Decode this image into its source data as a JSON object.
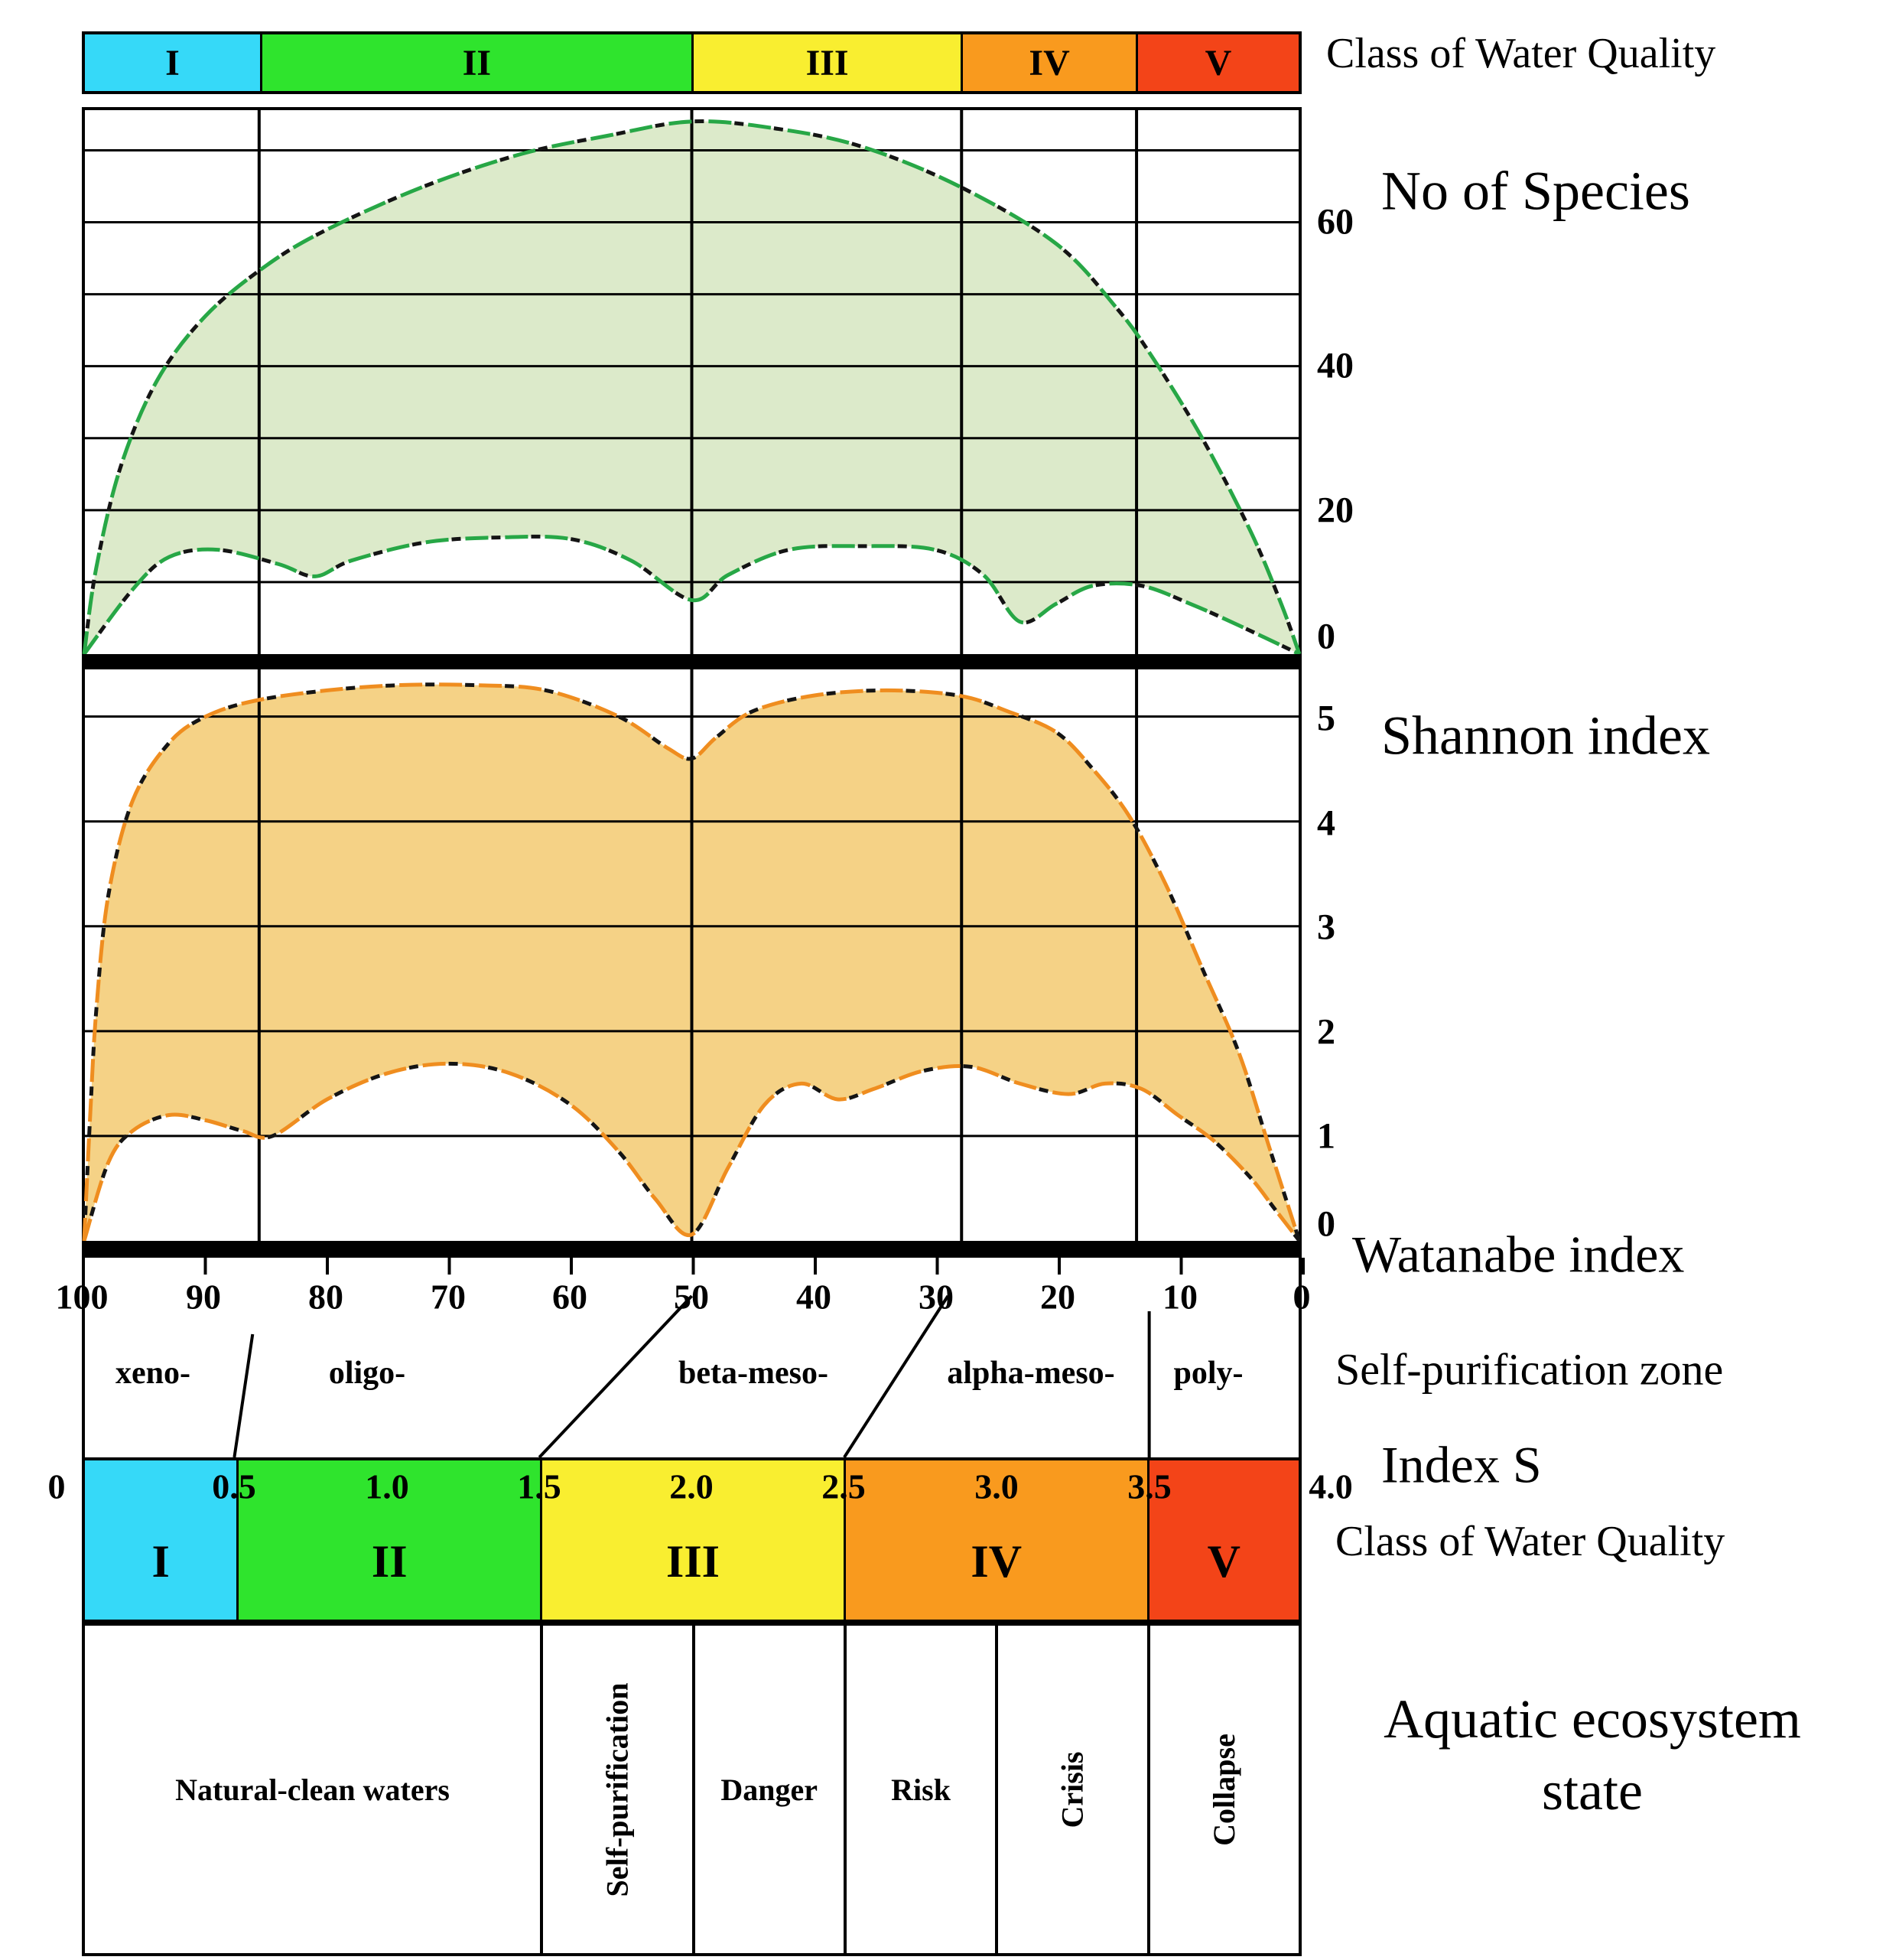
{
  "top_class_bar": {
    "title": "Class of Water Quality",
    "segments": [
      {
        "numeral": "I",
        "color": "#36d9f8"
      },
      {
        "numeral": "II",
        "color": "#2fe42d"
      },
      {
        "numeral": "III",
        "color": "#f9ee30"
      },
      {
        "numeral": "IV",
        "color": "#f99a1e"
      },
      {
        "numeral": "V",
        "color": "#f34418"
      }
    ]
  },
  "species_panel": {
    "title": "No of Species",
    "ticks": [
      "60",
      "40",
      "20",
      "0"
    ]
  },
  "shannon_panel": {
    "title": "Shannon index",
    "ticks": [
      "5",
      "4",
      "3",
      "2",
      "1",
      "0"
    ]
  },
  "watanabe_axis": {
    "title": "Watanabe index",
    "ticks": [
      "100",
      "90",
      "80",
      "70",
      "60",
      "50",
      "40",
      "30",
      "20",
      "10",
      "0"
    ]
  },
  "zone_row": {
    "title": "Self-purification zone",
    "zones": [
      {
        "label": "xeno-"
      },
      {
        "label": "oligo-"
      },
      {
        "label": "beta-meso-"
      },
      {
        "label": "alpha-meso-"
      },
      {
        "label": "poly-"
      }
    ],
    "boundaries": [
      {
        "watanabe": 86,
        "index_s": 0.5
      },
      {
        "watanabe": 50,
        "index_s": 1.5
      },
      {
        "watanabe": 29,
        "index_s": 2.5
      },
      {
        "watanabe": 12.5,
        "index_s": 3.5
      }
    ]
  },
  "index_s_axis": {
    "title": "Index S",
    "ticks": [
      "0",
      "0.5",
      "1.0",
      "1.5",
      "2.0",
      "2.5",
      "3.0",
      "3.5",
      "4.0"
    ]
  },
  "bottom_class_bar": {
    "title": "Class of Water Quality",
    "segments": [
      {
        "numeral": "I",
        "color": "#36d9f8",
        "s_range": [
          0,
          0.5
        ]
      },
      {
        "numeral": "II",
        "color": "#2fe42d",
        "s_range": [
          0.5,
          1.5
        ]
      },
      {
        "numeral": "III",
        "color": "#f9ee30",
        "s_range": [
          1.5,
          2.5
        ]
      },
      {
        "numeral": "IV",
        "color": "#f99a1e",
        "s_range": [
          2.5,
          3.5
        ]
      },
      {
        "numeral": "V",
        "color": "#f34418",
        "s_range": [
          3.5,
          4
        ]
      }
    ]
  },
  "ecosystem_row": {
    "title_line1": "Aquatic ecosystem",
    "title_line2": "state",
    "cells": [
      {
        "label": "Natural-clean waters",
        "orientation": "horizontal",
        "s_range": [
          0,
          1.5
        ]
      },
      {
        "label": "Self-purification",
        "orientation": "vertical",
        "s_range": [
          1.5,
          2
        ]
      },
      {
        "label": "Danger",
        "orientation": "horizontal",
        "s_range": [
          2,
          2.5
        ]
      },
      {
        "label": "Risk",
        "orientation": "horizontal",
        "s_range": [
          2.5,
          3
        ]
      },
      {
        "label": "Crisis",
        "orientation": "vertical",
        "s_range": [
          3,
          3.5
        ]
      },
      {
        "label": "Collapse",
        "orientation": "vertical",
        "s_range": [
          3.5,
          4
        ]
      }
    ]
  },
  "chart_data": [
    {
      "type": "area",
      "title": "No of Species",
      "x_axis": "Watanabe index (100 at left to 0 at right)",
      "ylim": [
        0,
        76
      ],
      "yticks_labeled": [
        60,
        40,
        20,
        0
      ],
      "gridline_values": [
        10,
        20,
        30,
        40,
        50,
        60,
        70
      ],
      "class_boundaries_watanabe": [
        85.6,
        50,
        27.8,
        13.4
      ],
      "fill": "#d8e8c4",
      "stroke": "#27a746",
      "series": [
        {
          "name": "upper envelope",
          "points": [
            [
              100,
              0
            ],
            [
              99,
              12
            ],
            [
              97,
              26
            ],
            [
              94,
              38
            ],
            [
              90,
              47
            ],
            [
              85,
              54
            ],
            [
              80,
              59
            ],
            [
              72,
              65
            ],
            [
              64,
              69.5
            ],
            [
              57,
              72
            ],
            [
              50,
              74
            ],
            [
              43,
              73
            ],
            [
              36,
              70.5
            ],
            [
              28,
              65
            ],
            [
              20,
              57
            ],
            [
              15,
              48
            ],
            [
              12,
              41
            ],
            [
              8,
              30
            ],
            [
              4,
              17
            ],
            [
              1.5,
              7
            ],
            [
              0,
              0
            ]
          ]
        },
        {
          "name": "lower envelope",
          "points": [
            [
              100,
              0
            ],
            [
              96,
              9
            ],
            [
              93,
              13.5
            ],
            [
              89,
              14.5
            ],
            [
              84,
              12.5
            ],
            [
              81,
              10.8
            ],
            [
              78,
              13
            ],
            [
              72,
              15.5
            ],
            [
              66,
              16.2
            ],
            [
              60,
              16
            ],
            [
              55,
              13
            ],
            [
              50,
              7.5
            ],
            [
              47,
              11
            ],
            [
              42,
              14.5
            ],
            [
              36,
              15
            ],
            [
              30,
              14.5
            ],
            [
              26,
              11
            ],
            [
              23,
              4.5
            ],
            [
              20,
              7
            ],
            [
              17,
              9.5
            ],
            [
              13,
              9.5
            ],
            [
              9,
              7
            ],
            [
              5,
              4
            ],
            [
              0,
              0
            ]
          ]
        }
      ]
    },
    {
      "type": "area",
      "title": "Shannon index",
      "x_axis": "Watanabe index (100 at left to 0 at right)",
      "ylim": [
        0,
        5.45
      ],
      "yticks_labeled": [
        5,
        4,
        3,
        2,
        1,
        0
      ],
      "gridline_values": [
        1,
        2,
        3,
        4,
        5
      ],
      "class_boundaries_watanabe": [
        85.6,
        50,
        27.8,
        13.4
      ],
      "fill": "#f4cd79",
      "stroke": "#ef8d1f",
      "series": [
        {
          "name": "upper envelope",
          "points": [
            [
              100,
              0
            ],
            [
              99.5,
              1.2
            ],
            [
              99,
              2.2
            ],
            [
              98,
              3.3
            ],
            [
              96,
              4.2
            ],
            [
              93,
              4.75
            ],
            [
              90,
              5.0
            ],
            [
              86,
              5.15
            ],
            [
              80,
              5.25
            ],
            [
              74,
              5.3
            ],
            [
              68,
              5.3
            ],
            [
              62,
              5.25
            ],
            [
              56,
              5.0
            ],
            [
              52,
              4.7
            ],
            [
              50,
              4.6
            ],
            [
              48,
              4.8
            ],
            [
              45,
              5.05
            ],
            [
              40,
              5.2
            ],
            [
              34,
              5.25
            ],
            [
              28,
              5.2
            ],
            [
              24,
              5.05
            ],
            [
              20,
              4.85
            ],
            [
              17,
              4.5
            ],
            [
              14,
              4.05
            ],
            [
              11,
              3.4
            ],
            [
              8,
              2.6
            ],
            [
              5,
              1.8
            ],
            [
              2.5,
              0.9
            ],
            [
              0,
              0
            ]
          ]
        },
        {
          "name": "lower envelope",
          "points": [
            [
              100,
              0
            ],
            [
              98,
              0.75
            ],
            [
              96,
              1.05
            ],
            [
              93,
              1.2
            ],
            [
              90,
              1.15
            ],
            [
              87,
              1.05
            ],
            [
              84.5,
              1.0
            ],
            [
              80,
              1.35
            ],
            [
              75,
              1.6
            ],
            [
              70,
              1.69
            ],
            [
              65,
              1.6
            ],
            [
              60,
              1.3
            ],
            [
              56,
              0.85
            ],
            [
              53,
              0.4
            ],
            [
              50,
              0.06
            ],
            [
              47,
              0.7
            ],
            [
              44,
              1.3
            ],
            [
              41,
              1.5
            ],
            [
              38,
              1.35
            ],
            [
              35,
              1.45
            ],
            [
              31,
              1.62
            ],
            [
              27,
              1.66
            ],
            [
              23,
              1.5
            ],
            [
              19,
              1.4
            ],
            [
              16,
              1.5
            ],
            [
              13,
              1.45
            ],
            [
              10,
              1.2
            ],
            [
              7,
              0.95
            ],
            [
              4,
              0.6
            ],
            [
              2,
              0.3
            ],
            [
              0,
              0
            ]
          ]
        }
      ]
    }
  ]
}
